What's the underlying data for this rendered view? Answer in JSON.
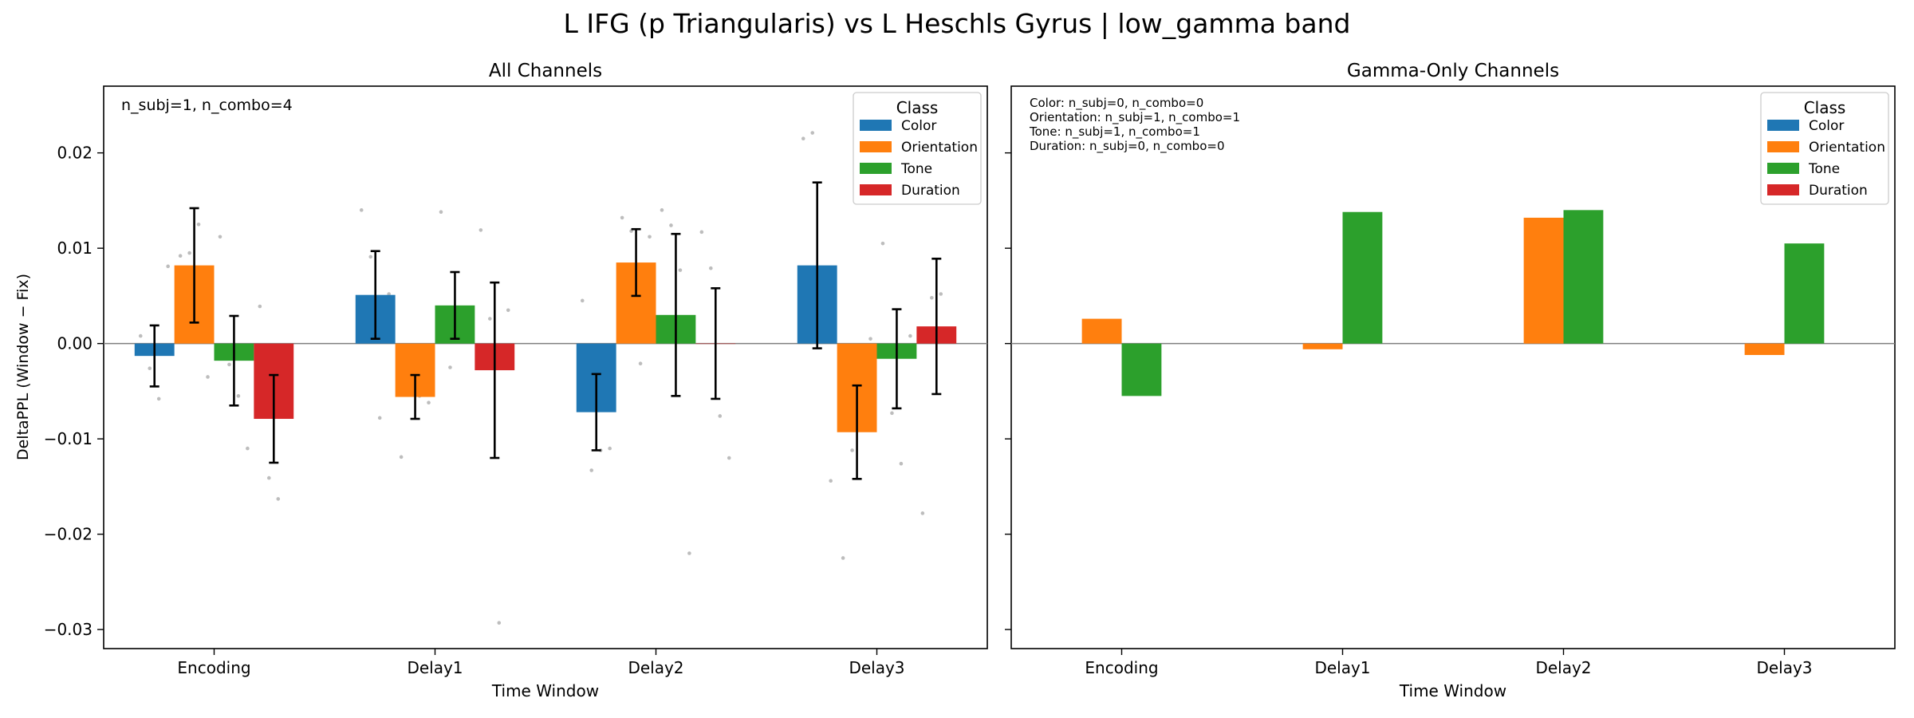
{
  "suptitle": "L IFG (p Triangularis) vs L Heschls Gyrus  |  low_gamma band",
  "ylabel": "DeltaPPL (Window − Fix)",
  "legend_title": "Class",
  "colors": {
    "Color": "#1f77b4",
    "Orientation": "#ff7f0e",
    "Tone": "#2ca02c",
    "Duration": "#d62728"
  },
  "chart_data": [
    {
      "type": "bar",
      "title": "All Channels",
      "xlabel": "Time Window",
      "ylabel": "DeltaPPL (Window − Fix)",
      "categories": [
        "Encoding",
        "Delay1",
        "Delay2",
        "Delay3"
      ],
      "ylim": [
        -0.032,
        0.027
      ],
      "yticks": [
        0.02,
        0.01,
        0.0,
        -0.01,
        -0.02,
        -0.03
      ],
      "ytick_labels": [
        "0.02",
        "0.01",
        "0.00",
        "−0.01",
        "−0.02",
        "−0.03"
      ],
      "annotation": [
        "n_subj=1, n_combo=4"
      ],
      "legend_position": "top-right",
      "series": [
        {
          "name": "Color",
          "values": [
            -0.0013,
            0.0051,
            -0.0072,
            0.0082
          ],
          "err": [
            0.0032,
            0.0046,
            0.004,
            0.0087
          ]
        },
        {
          "name": "Orientation",
          "values": [
            0.0082,
            -0.0056,
            0.0085,
            -0.0093
          ],
          "err": [
            0.006,
            0.0023,
            0.0035,
            0.0049
          ]
        },
        {
          "name": "Tone",
          "values": [
            -0.0018,
            0.004,
            0.003,
            -0.0016
          ],
          "err": [
            0.0047,
            0.0035,
            0.0085,
            0.0052
          ]
        },
        {
          "name": "Duration",
          "values": [
            -0.0079,
            -0.0028,
            0.0,
            0.0018
          ],
          "err": [
            0.0046,
            0.0092,
            0.0058,
            0.0071
          ]
        }
      ],
      "points": [
        {
          "series": "Color",
          "category": "Encoding",
          "values": [
            0.0008,
            -0.0026,
            -0.0058,
            0.0081
          ]
        },
        {
          "series": "Orientation",
          "category": "Encoding",
          "values": [
            0.0092,
            0.0095,
            0.0125,
            -0.0035
          ]
        },
        {
          "series": "Tone",
          "category": "Encoding",
          "values": [
            0.0112,
            -0.0022,
            -0.0055,
            -0.011
          ]
        },
        {
          "series": "Duration",
          "category": "Encoding",
          "values": [
            0.0039,
            -0.0141,
            -0.0163,
            -0.0068
          ]
        },
        {
          "series": "Color",
          "category": "Delay1",
          "values": [
            0.014,
            0.0091,
            -0.0078,
            0.0052
          ]
        },
        {
          "series": "Orientation",
          "category": "Delay1",
          "values": [
            -0.0119,
            -0.0048,
            -0.0055,
            -0.0062
          ]
        },
        {
          "series": "Tone",
          "category": "Delay1",
          "values": [
            0.0138,
            -0.0025,
            0.0035,
            0.003
          ]
        },
        {
          "series": "Duration",
          "category": "Delay1",
          "values": [
            0.0119,
            0.0026,
            -0.0293,
            0.0035
          ]
        },
        {
          "series": "Color",
          "category": "Delay2",
          "values": [
            0.0045,
            -0.0133,
            -0.0112,
            -0.011
          ]
        },
        {
          "series": "Orientation",
          "category": "Delay2",
          "values": [
            0.0132,
            0.0118,
            -0.0021,
            0.0112
          ]
        },
        {
          "series": "Tone",
          "category": "Delay2",
          "values": [
            0.014,
            0.0124,
            0.0077,
            -0.022
          ]
        },
        {
          "series": "Duration",
          "category": "Delay2",
          "values": [
            0.0117,
            0.0079,
            -0.0076,
            -0.012
          ]
        },
        {
          "series": "Color",
          "category": "Delay3",
          "values": [
            0.0215,
            0.0221,
            0.0035,
            -0.0144
          ]
        },
        {
          "series": "Orientation",
          "category": "Delay3",
          "values": [
            -0.0225,
            -0.0112,
            -0.0065,
            0.0005
          ]
        },
        {
          "series": "Tone",
          "category": "Delay3",
          "values": [
            0.0105,
            -0.0073,
            -0.0126,
            0.0008
          ]
        },
        {
          "series": "Duration",
          "category": "Delay3",
          "values": [
            -0.0178,
            0.0048,
            0.0052,
            0.0012
          ]
        }
      ]
    },
    {
      "type": "bar",
      "title": "Gamma-Only Channels",
      "xlabel": "Time Window",
      "ylabel": "",
      "categories": [
        "Encoding",
        "Delay1",
        "Delay2",
        "Delay3"
      ],
      "ylim": [
        -0.032,
        0.027
      ],
      "yticks": [
        0.02,
        0.01,
        0.0,
        -0.01,
        -0.02,
        -0.03
      ],
      "annotation": [
        "Color: n_subj=0, n_combo=0",
        "Orientation: n_subj=1, n_combo=1",
        "Tone: n_subj=1, n_combo=1",
        "Duration: n_subj=0, n_combo=0"
      ],
      "legend_position": "top-right",
      "series": [
        {
          "name": "Orientation",
          "values": [
            0.0026,
            -0.0006,
            0.0132,
            -0.0012
          ]
        },
        {
          "name": "Tone",
          "values": [
            -0.0055,
            0.0138,
            0.014,
            0.0105
          ]
        }
      ]
    }
  ]
}
